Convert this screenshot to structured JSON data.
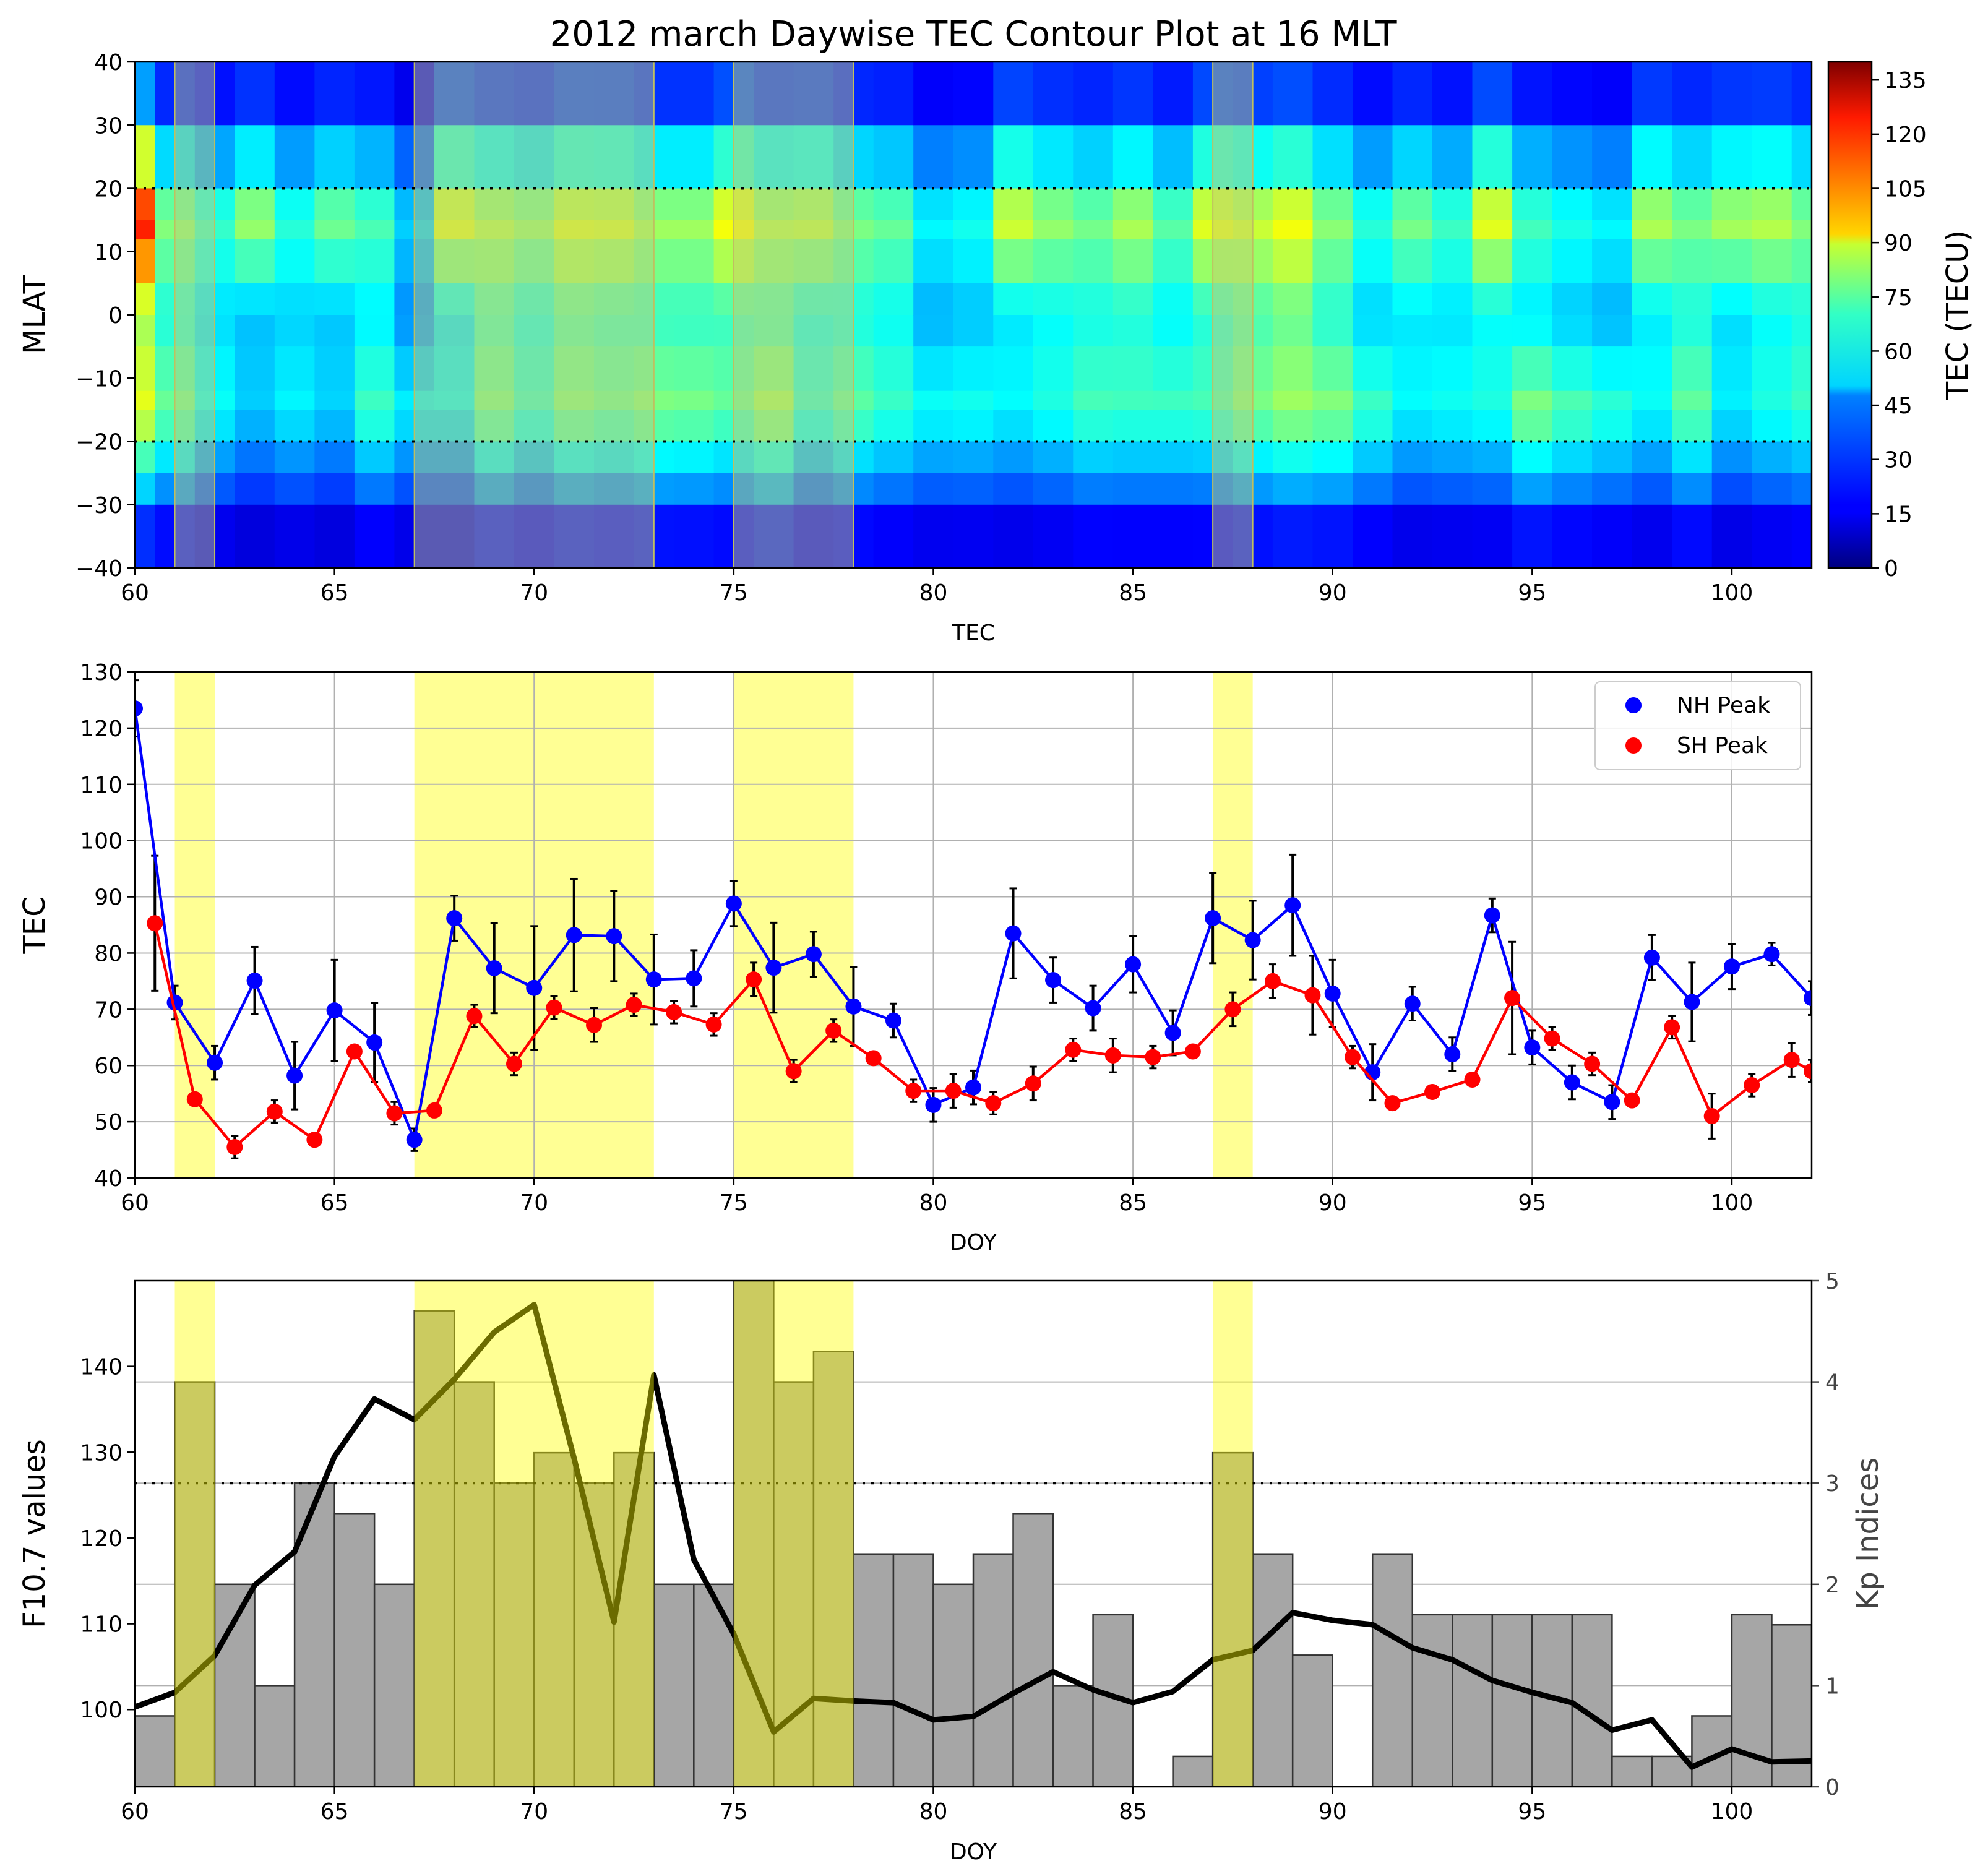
{
  "chart_data": [
    {
      "type": "heatmap",
      "title": "2012 march Daywise TEC Contour Plot at 16 MLT",
      "xlabel": "TEC",
      "ylabel": "MLAT",
      "xlim": [
        60,
        102
      ],
      "ylim": [
        -40,
        40
      ],
      "x_ticks": [
        "60",
        "65",
        "70",
        "75",
        "80",
        "85",
        "90",
        "95",
        "100"
      ],
      "y_ticks": [
        "40",
        "30",
        "20",
        "10",
        "0",
        "−10",
        "−20",
        "−30",
        "−40"
      ],
      "colorbar": {
        "label": "TEC (TECU)",
        "range": [
          0,
          140
        ],
        "ticks": [
          "0",
          "15",
          "30",
          "45",
          "60",
          "75",
          "90",
          "105",
          "120",
          "135"
        ],
        "colormap": "jet"
      },
      "reference_lines_mlat": [
        20,
        -20
      ],
      "highlight_days": [
        [
          61,
          62
        ],
        [
          67,
          73
        ],
        [
          75,
          78
        ],
        [
          87,
          88
        ]
      ],
      "mlat_grid": [
        40,
        30,
        20,
        15,
        12,
        5,
        0,
        -5,
        -12,
        -15,
        -20,
        -25,
        -30,
        -40
      ],
      "day_grid": [
        60,
        61,
        62,
        63,
        64,
        65,
        66,
        67,
        68,
        69,
        70,
        71,
        72,
        73,
        74,
        75,
        76,
        77,
        78,
        79,
        80,
        81,
        82,
        83,
        84,
        85,
        86,
        87,
        88,
        89,
        90,
        91,
        92,
        93,
        94,
        95,
        96,
        97,
        98,
        99,
        100,
        101,
        102
      ],
      "nh_crest_tec": [
        123,
        72,
        61,
        76,
        59,
        70,
        64,
        47,
        86,
        78,
        74,
        84,
        83,
        76,
        76,
        89,
        78,
        80,
        71,
        68,
        53,
        56,
        84,
        75,
        70,
        78,
        66,
        86,
        82,
        88,
        73,
        59,
        71,
        62,
        87,
        63,
        57,
        53,
        79,
        71,
        78,
        80,
        72
      ],
      "sh_crest_tec": [
        85,
        68,
        54,
        46,
        52,
        47,
        62,
        52,
        52,
        69,
        60,
        70,
        67,
        71,
        70,
        67,
        75,
        59,
        66,
        61,
        55,
        56,
        53,
        57,
        63,
        62,
        62,
        63,
        70,
        75,
        72,
        62,
        53,
        55,
        57,
        72,
        65,
        60,
        54,
        67,
        51,
        57,
        61
      ]
    },
    {
      "type": "line",
      "xlabel": "DOY",
      "ylabel": "TEC",
      "xlim": [
        60,
        102
      ],
      "ylim": [
        40,
        130
      ],
      "grid": true,
      "legend_position": "top-right",
      "x_ticks": [
        "60",
        "65",
        "70",
        "75",
        "80",
        "85",
        "90",
        "95",
        "100"
      ],
      "y_ticks": [
        "40",
        "50",
        "60",
        "70",
        "80",
        "90",
        "100",
        "110",
        "120",
        "130"
      ],
      "highlight_days": [
        [
          61,
          62
        ],
        [
          67,
          73
        ],
        [
          75,
          78
        ],
        [
          87,
          88
        ]
      ],
      "series": [
        {
          "name": "NH Peak",
          "color": "#0000ff",
          "x": [
            60,
            61,
            62,
            63,
            64,
            65,
            66,
            67,
            68,
            69,
            70,
            71,
            72,
            73,
            74,
            75,
            76,
            77,
            78,
            79,
            80,
            81,
            82,
            83,
            84,
            85,
            86,
            87,
            88,
            89,
            90,
            91,
            92,
            93,
            94,
            95,
            96,
            97,
            98,
            99,
            100,
            101,
            102
          ],
          "y": [
            123.5,
            71.2,
            60.5,
            75.1,
            58.2,
            69.8,
            64.1,
            46.8,
            86.2,
            77.3,
            73.8,
            83.2,
            83.0,
            75.3,
            75.5,
            88.8,
            77.4,
            79.8,
            70.5,
            68.0,
            53.0,
            56.1,
            83.5,
            75.2,
            70.2,
            78.0,
            65.8,
            86.2,
            82.3,
            88.5,
            72.8,
            58.8,
            71.0,
            62.0,
            86.7,
            63.2,
            57.0,
            53.5,
            79.2,
            71.3,
            77.6,
            79.8,
            72.0
          ],
          "err": [
            5,
            3,
            3,
            6,
            6,
            9,
            7,
            2,
            4,
            8,
            11,
            10,
            8,
            8,
            5,
            4,
            8,
            4,
            7,
            3,
            3,
            3,
            8,
            4,
            4,
            5,
            4,
            8,
            7,
            9,
            6,
            5,
            3,
            3,
            3,
            3,
            3,
            3,
            4,
            7,
            4,
            2,
            3
          ]
        },
        {
          "name": "SH Peak",
          "color": "#ff0000",
          "x": [
            60.5,
            61.5,
            62.5,
            63.5,
            64.5,
            65.5,
            66.5,
            67.5,
            68.5,
            69.5,
            70.5,
            71.5,
            72.5,
            73.5,
            74.5,
            75.5,
            76.5,
            77.5,
            78.5,
            79.5,
            80.5,
            81.5,
            82.5,
            83.5,
            84.5,
            85.5,
            86.5,
            87.5,
            88.5,
            89.5,
            90.5,
            91.5,
            92.5,
            93.5,
            94.5,
            95.5,
            96.5,
            97.5,
            98.5,
            99.5,
            100.5,
            101.5,
            102
          ],
          "y": [
            85.3,
            54.0,
            45.5,
            51.8,
            46.8,
            62.5,
            51.5,
            52.0,
            68.8,
            60.3,
            70.3,
            67.2,
            70.8,
            69.5,
            67.3,
            75.3,
            59.0,
            66.2,
            61.3,
            55.5,
            55.5,
            53.3,
            56.8,
            62.8,
            61.8,
            61.5,
            62.5,
            70.0,
            75.0,
            72.5,
            61.5,
            53.3,
            55.3,
            57.5,
            72.0,
            64.8,
            60.3,
            53.8,
            66.8,
            51.0,
            56.5,
            61.0,
            59.0
          ],
          "err": [
            12,
            1,
            2,
            2,
            1,
            1,
            2,
            1,
            2,
            2,
            2,
            3,
            2,
            2,
            2,
            3,
            2,
            2,
            1,
            2,
            3,
            2,
            3,
            2,
            3,
            2,
            1,
            3,
            3,
            7,
            2,
            1,
            1,
            1,
            10,
            2,
            2,
            1,
            2,
            4,
            2,
            3,
            2
          ]
        }
      ]
    },
    {
      "type": "bar",
      "xlabel": "DOY",
      "ylabel": "F10.7 values",
      "ylabel_right": "Kp Indices",
      "xlim": [
        60,
        102
      ],
      "ylim_left": [
        91,
        150
      ],
      "ylim_right": [
        0,
        5
      ],
      "x_ticks": [
        "60",
        "65",
        "70",
        "75",
        "80",
        "85",
        "90",
        "95",
        "100"
      ],
      "y_ticks_left": [
        "100",
        "110",
        "120",
        "130",
        "140"
      ],
      "y_ticks_right": [
        "0",
        "1",
        "2",
        "3",
        "4",
        "5"
      ],
      "kp_threshold": 3,
      "highlight_days": [
        [
          61,
          62
        ],
        [
          67,
          73
        ],
        [
          75,
          78
        ],
        [
          87,
          88
        ]
      ],
      "kp_series": {
        "color": "#999999",
        "x": [
          60,
          61,
          62,
          63,
          64,
          65,
          66,
          67,
          68,
          69,
          70,
          71,
          72,
          73,
          74,
          75,
          76,
          77,
          78,
          79,
          80,
          81,
          82,
          83,
          84,
          85,
          86,
          87,
          88,
          89,
          90,
          91,
          92,
          93,
          94,
          95,
          96,
          97,
          98,
          99,
          100,
          101
        ],
        "values": [
          0.7,
          4.0,
          2.0,
          1.0,
          3.0,
          2.7,
          2.0,
          4.7,
          4.0,
          3.0,
          3.3,
          3.0,
          3.3,
          2.0,
          2.0,
          5.0,
          4.0,
          4.3,
          2.3,
          2.3,
          2.0,
          2.3,
          2.7,
          1.0,
          1.7,
          0.0,
          0.3,
          3.3,
          2.3,
          1.3,
          0.0,
          2.3,
          1.7,
          1.7,
          1.7,
          1.7,
          1.7,
          0.3,
          0.3,
          0.7,
          1.7,
          1.6
        ]
      },
      "f107_series": {
        "color": "#000000",
        "x": [
          60,
          61,
          62,
          63,
          64,
          65,
          66,
          67,
          68,
          69,
          70,
          71,
          72,
          73,
          74,
          75,
          76,
          77,
          78,
          79,
          80,
          81,
          82,
          83,
          84,
          85,
          86,
          87,
          88,
          89,
          90,
          91,
          92,
          93,
          94,
          95,
          96,
          97,
          98,
          99,
          100,
          101,
          102
        ],
        "values": [
          100.3,
          102.0,
          106.3,
          114.5,
          118.4,
          129.5,
          136.2,
          133.8,
          138.5,
          144.0,
          147.2,
          129.3,
          110.2,
          139.0,
          117.5,
          108.8,
          97.4,
          101.3,
          101.0,
          100.8,
          98.8,
          99.2,
          101.9,
          104.4,
          102.3,
          100.8,
          102.1,
          105.8,
          106.9,
          111.3,
          110.4,
          109.9,
          107.2,
          105.8,
          103.4,
          102.0,
          100.8,
          97.6,
          98.8,
          93.3,
          95.4,
          93.9,
          94.0
        ]
      }
    }
  ]
}
